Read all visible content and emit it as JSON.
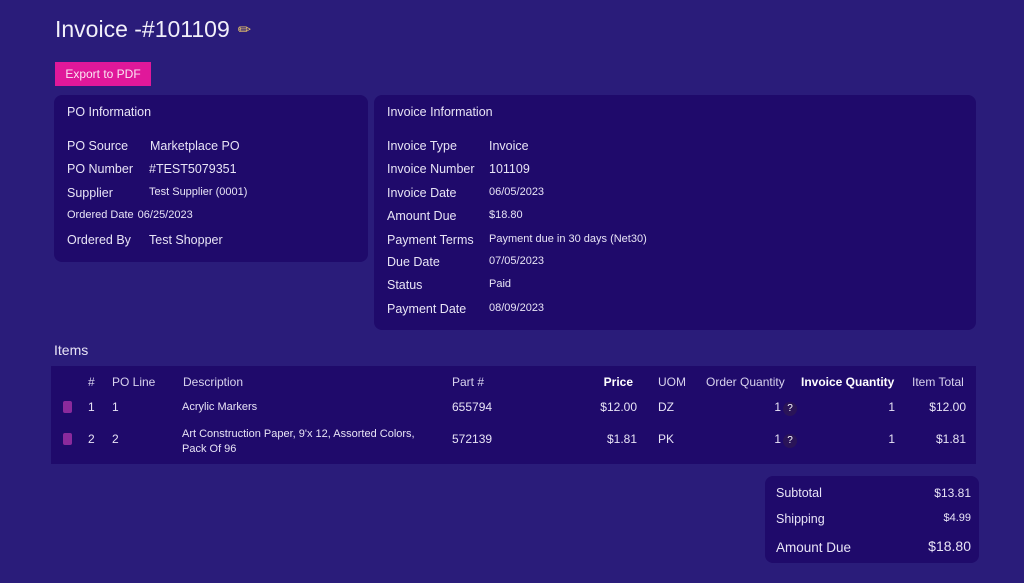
{
  "header": {
    "title": "Invoice -#101109",
    "edit_icon": "pencil-icon",
    "export_label": "Export to PDF"
  },
  "po_info": {
    "heading": "PO Information",
    "rows": [
      {
        "label": "PO Source",
        "value": "Marketplace PO"
      },
      {
        "label": "PO Number",
        "value": "#TEST5079351"
      },
      {
        "label": "Supplier",
        "value": "Test Supplier (0001)"
      },
      {
        "label": "Ordered Date",
        "value": "06/25/2023"
      },
      {
        "label": "Ordered By",
        "value": "Test Shopper"
      }
    ]
  },
  "invoice_info": {
    "heading": "Invoice Information",
    "rows": [
      {
        "label": "Invoice Type",
        "value": "Invoice"
      },
      {
        "label": "Invoice Number",
        "value": "101109"
      },
      {
        "label": "Invoice Date",
        "value": "06/05/2023"
      },
      {
        "label": "Amount Due",
        "value": "$18.80"
      },
      {
        "label": "Payment Terms",
        "value": "Payment due in 30 days (Net30)"
      },
      {
        "label": "Due Date",
        "value": "07/05/2023"
      },
      {
        "label": "Status",
        "value": "Paid"
      },
      {
        "label": "Payment Date",
        "value": "08/09/2023"
      }
    ]
  },
  "items": {
    "label": "Items",
    "columns": [
      "#",
      "PO Line",
      "Description",
      "Part #",
      "Price",
      "UOM",
      "Order Quantity",
      "Invoice Quantity",
      "Item Total"
    ],
    "rows": [
      {
        "num": "1",
        "po_line": "1",
        "description": "Acrylic Markers",
        "description2": "",
        "part": "655794",
        "price": "$12.00",
        "uom": "DZ",
        "order_qty": "1",
        "invoice_qty": "1",
        "total": "$12.00"
      },
      {
        "num": "2",
        "po_line": "2",
        "description": "Art Construction Paper, 9'x 12, Assorted Colors,",
        "description2": "Pack Of 96",
        "part": "572139",
        "price": "$1.81",
        "uom": "PK",
        "order_qty": "1",
        "invoice_qty": "1",
        "total": "$1.81"
      }
    ],
    "help_glyph": "?"
  },
  "totals": {
    "subtotal_label": "Subtotal",
    "subtotal": "$13.81",
    "shipping_label": "Shipping",
    "shipping": "$4.99",
    "amount_due_label": "Amount Due",
    "amount_due": "$18.80"
  },
  "colors": {
    "background": "#2a1c7a",
    "panel": "#1f0a6b",
    "accent": "#e0189a"
  }
}
